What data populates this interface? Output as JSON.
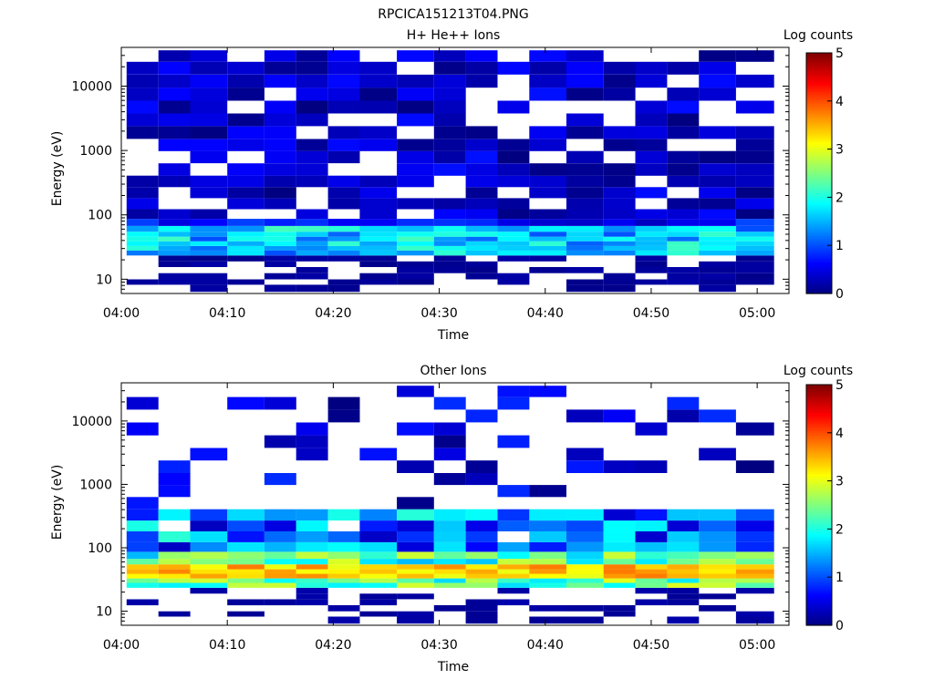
{
  "figure_title": "RPCICA151213T04.PNG",
  "chart_data": [
    {
      "type": "heatmap",
      "title": "H+ He++ Ions",
      "xlabel": "Time",
      "ylabel": "Energy (eV)",
      "x_ticks": [
        "04:00",
        "04:10",
        "04:20",
        "04:30",
        "04:40",
        "04:50",
        "05:00"
      ],
      "y_ticks": [
        "10",
        "100",
        "1000",
        "10000"
      ],
      "yscale": "log",
      "ylim": [
        6,
        40000
      ],
      "xlim": [
        "04:00",
        "05:03"
      ],
      "colorbar": {
        "label": "Log counts",
        "range": [
          0,
          5
        ],
        "ticks": [
          "0",
          "1",
          "2",
          "3",
          "4",
          "5"
        ],
        "colormap": "jet"
      },
      "time_bins": [
        "04:02",
        "04:05",
        "04:08",
        "04:12",
        "04:15",
        "04:18",
        "04:21",
        "04:24",
        "04:28",
        "04:31",
        "04:34",
        "04:37",
        "04:40",
        "04:44",
        "04:47",
        "04:50",
        "04:53",
        "04:56",
        "05:00"
      ],
      "energy_bins_eV": [
        7.5,
        9,
        11,
        14,
        17,
        21,
        26,
        30,
        36,
        42,
        50,
        60,
        75,
        100,
        150,
        220,
        330,
        500,
        800,
        1200,
        1900,
        3000,
        4700,
        7500,
        12000,
        19000,
        30000
      ],
      "counts_description": "Low-energy peak around 30-60 eV at log counts 1-2.2 (cyan/light blue); broad band of log counts 0-1 (blue) from 100 eV to 40 keV in all time bins; sparse counts below 25 eV."
    },
    {
      "type": "heatmap",
      "title": "Other Ions",
      "xlabel": "Time",
      "ylabel": "Energy (eV)",
      "x_ticks": [
        "04:00",
        "04:10",
        "04:20",
        "04:30",
        "04:40",
        "04:50",
        "05:00"
      ],
      "y_ticks": [
        "10",
        "100",
        "1000",
        "10000"
      ],
      "yscale": "log",
      "ylim": [
        6,
        40000
      ],
      "xlim": [
        "04:00",
        "05:03"
      ],
      "colorbar": {
        "label": "Log counts",
        "range": [
          0,
          5
        ],
        "ticks": [
          "0",
          "1",
          "2",
          "3",
          "4",
          "5"
        ],
        "colormap": "jet"
      },
      "time_bins": [
        "04:02",
        "04:05",
        "04:08",
        "04:12",
        "04:15",
        "04:18",
        "04:21",
        "04:24",
        "04:28",
        "04:31",
        "04:34",
        "04:37",
        "04:40",
        "04:44",
        "04:47",
        "04:50",
        "04:53",
        "04:56",
        "05:00"
      ],
      "energy_bins_eV": [
        7.5,
        9,
        11,
        14,
        17,
        21,
        26,
        30,
        36,
        42,
        50,
        60,
        75,
        100,
        150,
        220,
        330,
        500,
        800,
        1200,
        1900,
        3000,
        4700,
        7500,
        12000,
        19000,
        30000
      ],
      "counts_description": "Strong band at 35-60 eV with log counts 3-3.8 (orange/red), lower band 60-400 eV at log counts 0.5-2.5, sparse single detections from 1 keV to 35 keV."
    }
  ]
}
